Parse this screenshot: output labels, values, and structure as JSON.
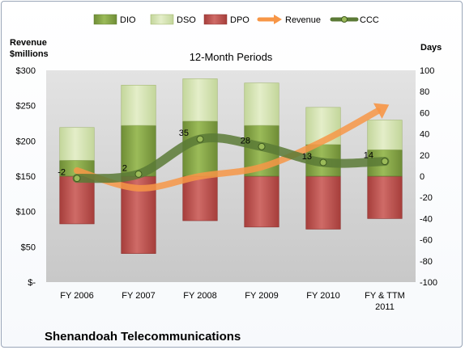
{
  "chart_data": {
    "type": "bar",
    "title": "12-Month Periods",
    "company": "Shenandoah Telecommunications",
    "left_axis_label_line1": "Revenue",
    "left_axis_label_line2": "$millions",
    "right_axis_label": "Days",
    "categories": [
      "FY 2006",
      "FY 2007",
      "FY 2008",
      "FY 2009",
      "FY 2010",
      "FY & TTM 2011"
    ],
    "category_lines": [
      [
        "FY 2006"
      ],
      [
        "FY 2007"
      ],
      [
        "FY 2008"
      ],
      [
        "FY 2009"
      ],
      [
        "FY 2010"
      ],
      [
        "FY & TTM",
        "2011"
      ]
    ],
    "left_axis": {
      "min": 0,
      "max": 300,
      "step": 50,
      "tick_labels": [
        "$-",
        "$50",
        "$100",
        "$150",
        "$200",
        "$250",
        "$300"
      ]
    },
    "right_axis": {
      "min": -100,
      "max": 100,
      "step": 20,
      "tick_labels": [
        "-100",
        "-80",
        "-60",
        "-40",
        "-20",
        "0",
        "20",
        "40",
        "60",
        "80",
        "100"
      ]
    },
    "legend_position": "top",
    "series": [
      {
        "name": "DPO",
        "axis": "right",
        "kind": "bar-down",
        "color": "#c0504d",
        "values": [
          -45,
          -73,
          -42,
          -48,
          -50,
          -40
        ]
      },
      {
        "name": "DIO",
        "axis": "right",
        "kind": "bar-up",
        "color": "#8aa84a",
        "values": [
          15,
          48,
          52,
          48,
          30,
          25
        ]
      },
      {
        "name": "DSO",
        "axis": "right",
        "kind": "bar-stack",
        "color": "#d4e5a8",
        "values": [
          31,
          38,
          40,
          40,
          35,
          28
        ]
      },
      {
        "name": "Revenue",
        "axis": "left",
        "kind": "arrow-line",
        "color": "#f79646",
        "values": [
          158,
          133,
          150,
          163,
          200,
          248
        ]
      },
      {
        "name": "CCC",
        "axis": "right",
        "kind": "line",
        "color": "#5b7a36",
        "values": [
          -2,
          2,
          35,
          28,
          13,
          14
        ]
      }
    ],
    "ccc_data_labels": [
      "-2",
      "2",
      "35",
      "28",
      "13",
      "14"
    ],
    "grid": false
  }
}
